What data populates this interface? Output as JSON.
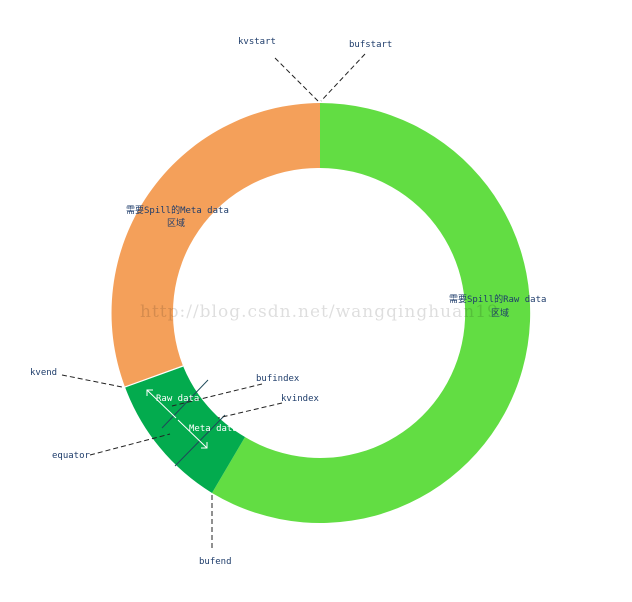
{
  "labels": {
    "kvstart": "kvstart",
    "bufstart": "bufstart",
    "kvend": "kvend",
    "bufindex": "bufindex",
    "kvindex": "kvindex",
    "equator": "equator",
    "bufend": "bufend"
  },
  "segments": {
    "raw_spill": {
      "line1": "需要Spill的Raw data",
      "line2": "区域",
      "color": "#62dd43"
    },
    "meta_spill": {
      "line1": "需要Spill的Meta data",
      "line2": "区域",
      "color": "#f4a05a"
    },
    "raw_data": {
      "label": "Raw data",
      "color": "#03ab4e"
    },
    "meta_data": {
      "label": "Meta data",
      "color": "#03ab4e"
    }
  },
  "watermark": "http://blog.csdn.net/wangqinghuan19"
}
